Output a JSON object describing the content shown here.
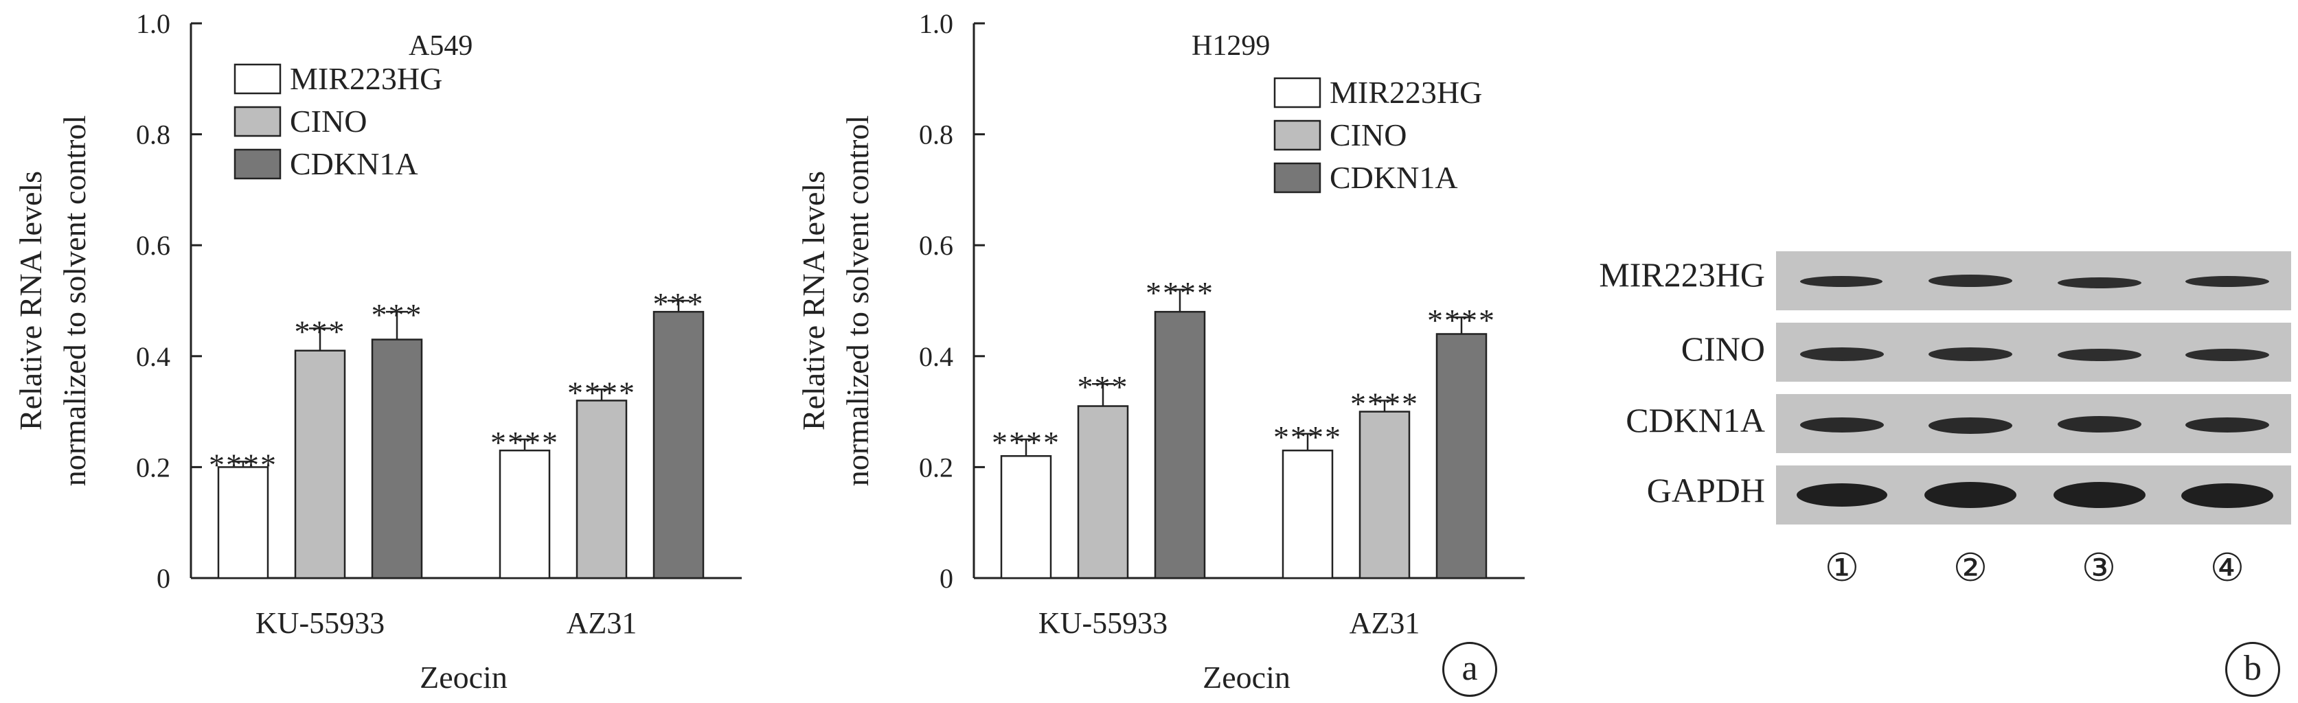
{
  "chart_data": [
    {
      "type": "bar",
      "title": "A549",
      "xlabel": "Zeocin",
      "ylabel_lines": [
        "Relative RNA levels",
        "normalized to solvent control"
      ],
      "ylim": [
        0,
        1.0
      ],
      "yticks": [
        "0",
        "0.2",
        "0.4",
        "0.6",
        "0.8",
        "1.0"
      ],
      "categories": [
        "KU-55933",
        "AZ31"
      ],
      "legend_position": "top-left",
      "series": [
        {
          "name": "MIR223HG",
          "color": "#ffffff",
          "values": [
            0.2,
            0.23
          ],
          "errors": [
            0.01,
            0.02
          ],
          "annotations": [
            "****",
            "****"
          ]
        },
        {
          "name": "CINO",
          "color": "#bdbdbd",
          "values": [
            0.41,
            0.32
          ],
          "errors": [
            0.04,
            0.02
          ],
          "annotations": [
            "***",
            "****"
          ]
        },
        {
          "name": "CDKN1A",
          "color": "#777777",
          "values": [
            0.43,
            0.48
          ],
          "errors": [
            0.05,
            0.02
          ],
          "annotations": [
            "***",
            "***"
          ]
        }
      ]
    },
    {
      "type": "bar",
      "title": "H1299",
      "xlabel": "Zeocin",
      "ylabel_lines": [
        "Relative RNA levels",
        "normalized to solvent control"
      ],
      "ylim": [
        0,
        1.0
      ],
      "yticks": [
        "0",
        "0.2",
        "0.4",
        "0.6",
        "0.8",
        "1.0"
      ],
      "categories": [
        "KU-55933",
        "AZ31"
      ],
      "legend_position": "top-right",
      "series": [
        {
          "name": "MIR223HG",
          "color": "#ffffff",
          "values": [
            0.22,
            0.23
          ],
          "errors": [
            0.03,
            0.03
          ],
          "annotations": [
            "****",
            "****"
          ]
        },
        {
          "name": "CINO",
          "color": "#bdbdbd",
          "values": [
            0.31,
            0.3
          ],
          "errors": [
            0.04,
            0.02
          ],
          "annotations": [
            "***",
            "****"
          ]
        },
        {
          "name": "CDKN1A",
          "color": "#777777",
          "values": [
            0.48,
            0.44
          ],
          "errors": [
            0.04,
            0.03
          ],
          "annotations": [
            "****",
            "****"
          ]
        }
      ]
    }
  ],
  "panel_a_letter": "a",
  "panel_b_letter": "b",
  "blot": {
    "rows": [
      "MIR223HG",
      "CINO",
      "CDKN1A",
      "GAPDH"
    ],
    "lanes": [
      "①",
      "②",
      "③",
      "④"
    ],
    "strip_color": "#c4c4c4",
    "band_color": "#2a2a2a"
  }
}
